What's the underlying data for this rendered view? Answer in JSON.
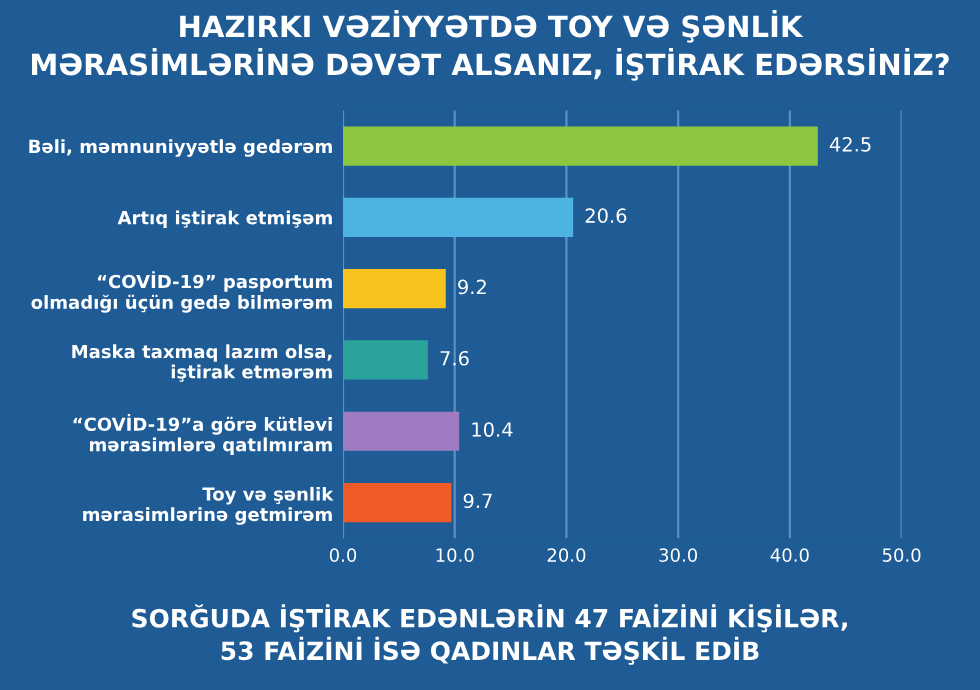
{
  "chart_data": {
    "type": "bar",
    "orientation": "horizontal",
    "title": "HAZIRKI VƏZİYYƏTDƏ TOY VƏ ŞƏNLİK\nMƏRASİMLƏRİNƏ DƏVƏT ALSANIZ, İŞTİRAK EDƏRSİNİZ?",
    "categories": [
      "Bəli, məmnuniyyətlə gedərəm",
      "Artıq iştirak etmişəm",
      "“COVİD-19” pasportum\nolmadığı üçün gedə bilmərəm",
      "Maska taxmaq lazım olsa,\niştirak etmərəm",
      "“COVİD-19”a görə kütləvi\nmərasimlərə qatılmıram",
      "Toy və şənlik\nmərasimlərinə getmirəm"
    ],
    "values": [
      42.5,
      20.6,
      9.2,
      7.6,
      10.4,
      9.7
    ],
    "colors": [
      "#8cc63f",
      "#4db3e2",
      "#f7c31c",
      "#2aa39b",
      "#9f7cc1",
      "#f05a28"
    ],
    "xlim": [
      0,
      50
    ],
    "xticks": [
      {
        "value": 0,
        "label": "0.0"
      },
      {
        "value": 10,
        "label": "10.0"
      },
      {
        "value": 20,
        "label": "20.0"
      },
      {
        "value": 30,
        "label": "30.0"
      },
      {
        "value": 40,
        "label": "40.0"
      },
      {
        "value": 50,
        "label": "50.0"
      }
    ],
    "grid": "x",
    "data_labels": true,
    "annotations": [
      "SORĞUDA İŞTİRAK EDƏNLƏRİN 47 FAİZİNİ KİŞİLƏR,\n53 FAİZİNİ İSƏ QADINLAR TƏŞKİL EDİB"
    ]
  }
}
